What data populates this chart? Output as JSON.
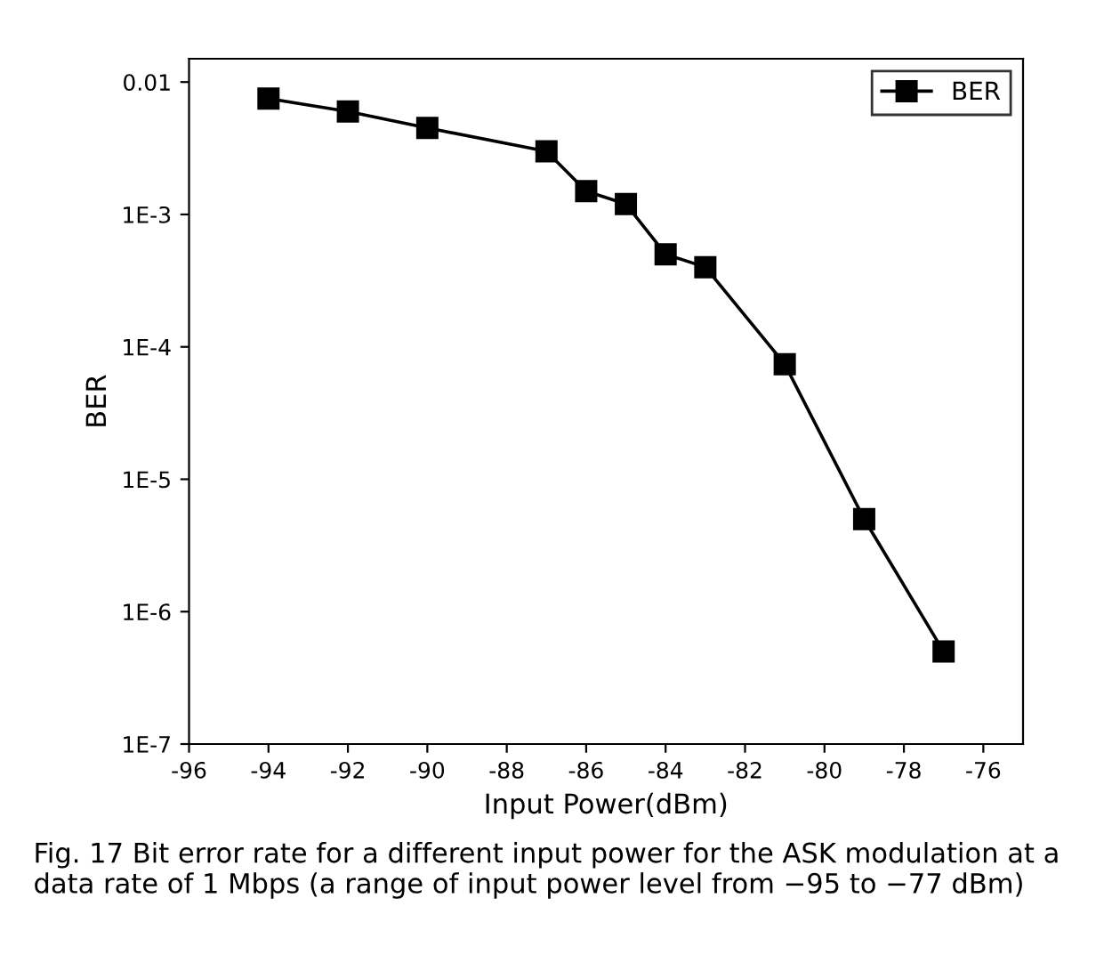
{
  "chart_data": {
    "type": "line",
    "xlabel": "Input Power(dBm)",
    "ylabel": "BER",
    "x": [
      -94,
      -92,
      -90,
      -87,
      -86,
      -85,
      -84,
      -83,
      -81,
      -79,
      -77
    ],
    "series": [
      {
        "name": "BER",
        "color": "#000000",
        "values": [
          0.0075,
          0.006,
          0.0045,
          0.003,
          0.0015,
          0.0012,
          0.0005,
          0.0004,
          7.4e-05,
          5e-06,
          5e-07
        ]
      }
    ],
    "log": "y",
    "xlim": [
      -96,
      -75
    ],
    "ylim": [
      1e-07,
      0.015
    ],
    "xticks": [
      -96,
      -94,
      -92,
      -90,
      -88,
      -86,
      -84,
      -82,
      -80,
      -78,
      -76
    ],
    "yticks": [
      {
        "value": 1e-07,
        "label": "1E-7"
      },
      {
        "value": 1e-06,
        "label": "1E-6"
      },
      {
        "value": 1e-05,
        "label": "1E-5"
      },
      {
        "value": 0.0001,
        "label": "1E-4"
      },
      {
        "value": 0.001,
        "label": "1E-3"
      },
      0.01
    ],
    "marker": "square",
    "line_style": "solid",
    "grid": false,
    "legend": "top right",
    "annotations": [
      "Fig. 17 Bit error rate for a different input power for the ASK modulation at a data rate of 1 Mbps (a range of input power level from −95 to −77 dBm)"
    ]
  }
}
